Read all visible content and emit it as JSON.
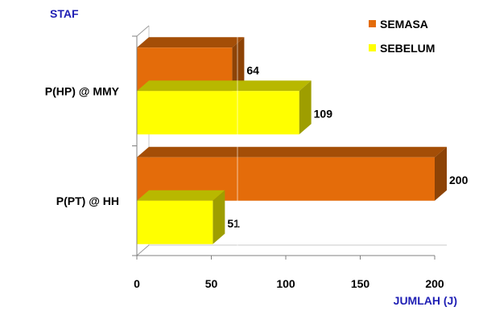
{
  "chart_data": {
    "type": "bar",
    "orientation": "horizontal",
    "style": "3d",
    "ylabel": "STAF",
    "xlabel": "JUMLAH (J)",
    "categories": [
      "P(HP) @ MMY",
      "P(PT) @ HH"
    ],
    "series": [
      {
        "name": "SEMASA",
        "values": [
          64,
          200
        ],
        "color": "#e46c0a"
      },
      {
        "name": "SEBELUM",
        "values": [
          109,
          51
        ],
        "color": "#ffff00"
      }
    ],
    "xlim": [
      0,
      200
    ],
    "xticks": [
      "0",
      "50",
      "100",
      "150",
      "200"
    ],
    "legend": "top-right",
    "grid": false
  }
}
